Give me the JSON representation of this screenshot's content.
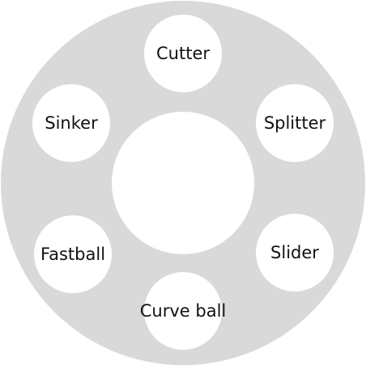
{
  "pitch_wheel": {
    "options": [
      {
        "id": "cutter",
        "label": "Cutter"
      },
      {
        "id": "splitter",
        "label": "Splitter"
      },
      {
        "id": "slider",
        "label": "Slider"
      },
      {
        "id": "curve_ball",
        "label": "Curve ball"
      },
      {
        "id": "fastball",
        "label": "Fastball"
      },
      {
        "id": "sinker",
        "label": "Sinker"
      }
    ]
  },
  "colors": {
    "ring": "#d9d9d9",
    "option_fill": "#ffffff",
    "text": "#111111"
  }
}
